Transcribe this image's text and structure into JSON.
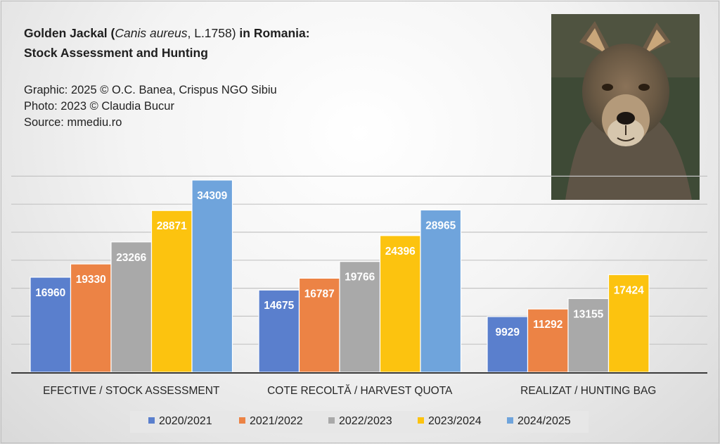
{
  "title": {
    "line1_a": "Golden Jackal (",
    "line1_species": "Canis aureus",
    "line1_year": ", L.1758)",
    "line1_b": " in Romania:",
    "line2": "Stock Assessment and Hunting"
  },
  "credits": {
    "graphic": "Graphic: 2025 © O.C. Banea, Crispus NGO Sibiu",
    "photo": "Photo: 2023 © Claudia Bucur",
    "source": "Source: mmediu.ro"
  },
  "colors": {
    "2020/2021": "#5a7fcd",
    "2021/2022": "#ec8345",
    "2022/2023": "#a9a9a9",
    "2023/2024": "#fcc30f",
    "2024/2025": "#6fa4dc"
  },
  "chart_data": {
    "type": "bar",
    "categories": [
      "EFECTIVE / STOCK ASSESSMENT",
      "COTE RECOLTĂ / HARVEST QUOTA",
      "REALIZAT / HUNTING BAG"
    ],
    "ylim": [
      0,
      40000
    ],
    "grid": true,
    "legend": "bottom",
    "series": [
      {
        "name": "2020/2021",
        "values": [
          16960,
          14675,
          9929
        ]
      },
      {
        "name": "2021/2022",
        "values": [
          19330,
          16787,
          11292
        ]
      },
      {
        "name": "2022/2023",
        "values": [
          23266,
          19766,
          13155
        ]
      },
      {
        "name": "2023/2024",
        "values": [
          28871,
          24396,
          17424
        ]
      },
      {
        "name": "2024/2025",
        "values": [
          34309,
          28965,
          null
        ]
      }
    ]
  }
}
